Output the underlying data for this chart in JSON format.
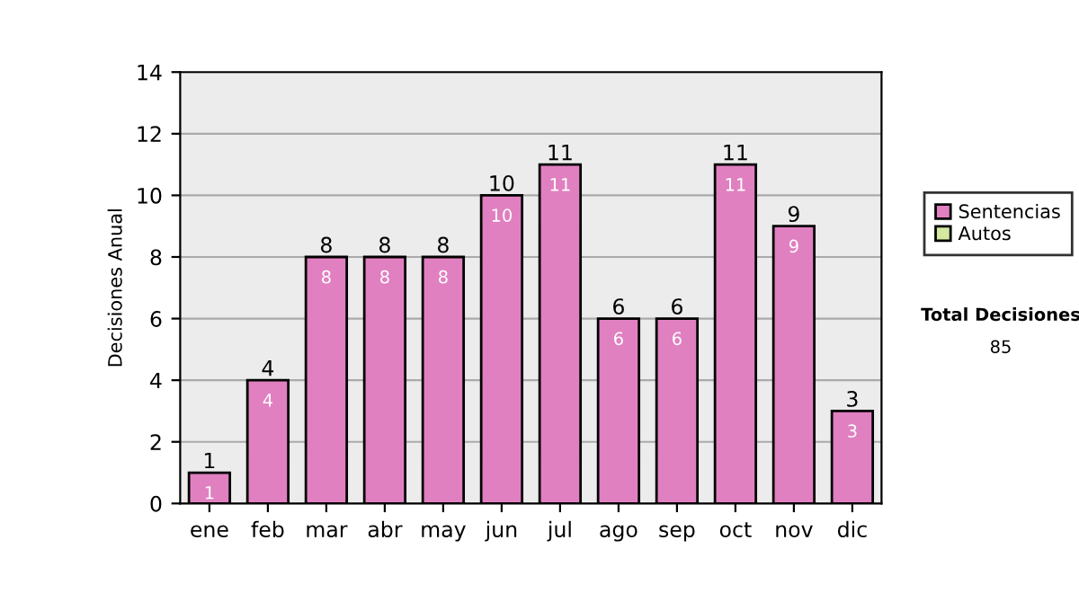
{
  "chart_data": {
    "type": "bar",
    "ylabel": "Decisiones Anual",
    "categories": [
      "ene",
      "feb",
      "mar",
      "abr",
      "may",
      "jun",
      "jul",
      "ago",
      "sep",
      "oct",
      "nov",
      "dic"
    ],
    "stacked": true,
    "series": [
      {
        "name": "Sentencias",
        "color": "#e080c0",
        "values": [
          1,
          4,
          8,
          8,
          8,
          10,
          11,
          6,
          6,
          11,
          9,
          3
        ],
        "value_labels": [
          "1",
          "4",
          "8",
          "8",
          "8",
          "10",
          "11",
          "6",
          "6",
          "11",
          "9",
          "3"
        ]
      },
      {
        "name": "Autos",
        "color": "#d4e8a0",
        "values": [
          null,
          null,
          null,
          null,
          null,
          null,
          null,
          null,
          null,
          null,
          null,
          null
        ]
      }
    ],
    "totals": [
      "1",
      "4",
      "8",
      "8",
      "8",
      "10",
      "11",
      "6",
      "6",
      "11",
      "9",
      "3"
    ],
    "ylim": [
      0,
      14
    ],
    "yticks": [
      0,
      2,
      4,
      6,
      8,
      10,
      12,
      14
    ],
    "grid": "y",
    "legend": "right",
    "annotations": [
      "Total Decisiones",
      "85"
    ]
  }
}
